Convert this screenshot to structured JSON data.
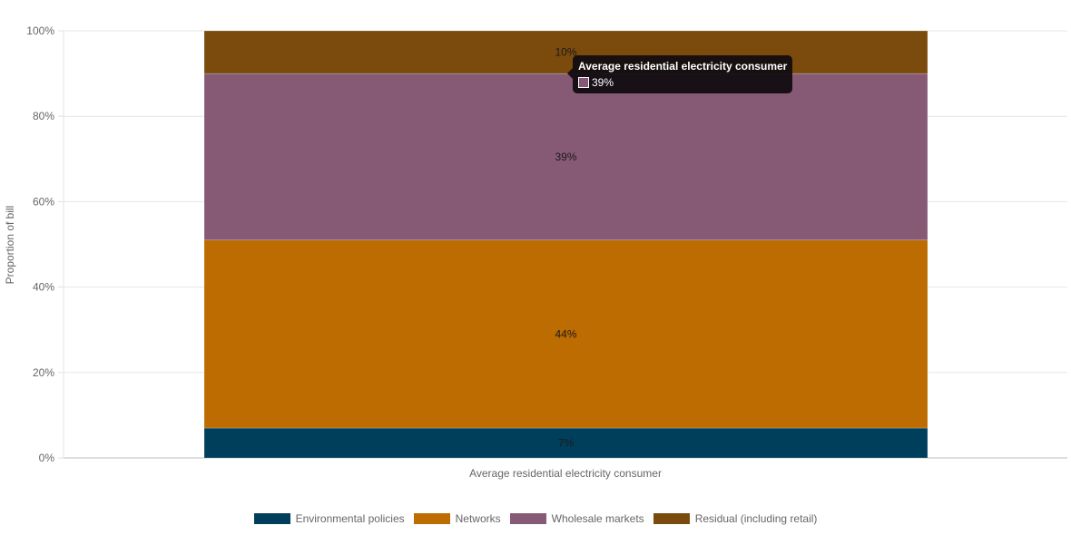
{
  "chart_data": {
    "type": "bar",
    "stacked": true,
    "categories": [
      "Average residential electricity consumer"
    ],
    "series": [
      {
        "name": "Environmental policies",
        "values": [
          7
        ],
        "color": "#003f5c"
      },
      {
        "name": "Networks",
        "values": [
          44
        ],
        "color": "#bc6c00"
      },
      {
        "name": "Wholesale markets",
        "values": [
          39
        ],
        "color": "#865a74"
      },
      {
        "name": "Residual (including retail)",
        "values": [
          10
        ],
        "color": "#7a4b0d"
      }
    ],
    "data_labels": [
      "7%",
      "44%",
      "39%",
      "10%"
    ],
    "ylabel": "Proportion of bill",
    "ylim": [
      0,
      100
    ],
    "yticks": [
      "0%",
      "20%",
      "40%",
      "60%",
      "80%",
      "100%"
    ],
    "grid": true,
    "legend": "bottom"
  },
  "tooltip": {
    "title": "Average residential electricity consumer",
    "value": "39%",
    "swatch_color": "#865a74"
  }
}
